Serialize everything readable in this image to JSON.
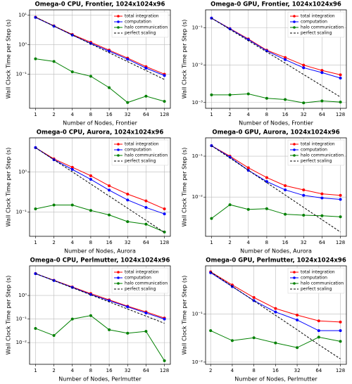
{
  "chart_data": [
    {
      "type": "line",
      "title": "Omega-0 CPU, Frontier, 1024x1024x96",
      "xlabel": "Number of Nodes, Frontier",
      "ylabel": "Wall Clock Time per Step (s)",
      "x": [
        1,
        2,
        4,
        8,
        16,
        32,
        64,
        128
      ],
      "xscale": "log2",
      "yscale": "log",
      "xlim": [
        0.8,
        160
      ],
      "xticks": [
        1,
        2,
        4,
        8,
        16,
        32,
        64,
        128
      ],
      "ylim": [
        0.007,
        15
      ],
      "yticks": [
        {
          "value": 0.1,
          "label": "10⁻¹"
        },
        {
          "value": 1,
          "label": "10⁰"
        },
        {
          "value": 10,
          "label": "10¹"
        }
      ],
      "grid": true,
      "legend": "upper right",
      "series": [
        {
          "name": "total integration",
          "color": "#ff0000",
          "values": [
            8.5,
            4.3,
            2.2,
            1.2,
            0.65,
            0.35,
            0.18,
            0.1
          ]
        },
        {
          "name": "computation",
          "color": "#0000ff",
          "values": [
            8.3,
            4.2,
            2.1,
            1.1,
            0.6,
            0.32,
            0.16,
            0.09
          ]
        },
        {
          "name": "halo communication",
          "color": "#008000",
          "values": [
            0.33,
            0.27,
            0.12,
            0.085,
            0.035,
            0.011,
            0.018,
            0.012
          ]
        },
        {
          "name": "perfect scaling",
          "color": "#000000",
          "dashed": true,
          "values": [
            8.5,
            4.25,
            2.125,
            1.0625,
            0.53,
            0.266,
            0.133,
            0.066
          ]
        }
      ]
    },
    {
      "type": "line",
      "title": "Omega-0 GPU, Frontier, 1024x1024x96",
      "xlabel": "Number of Nodes, Frontier",
      "ylabel": "Wall Clock Time per Step (s)",
      "x": [
        1,
        2,
        4,
        8,
        16,
        32,
        64,
        128
      ],
      "xscale": "log2",
      "yscale": "log",
      "xlim": [
        0.8,
        160
      ],
      "xticks": [
        1,
        2,
        4,
        8,
        16,
        32,
        64,
        128
      ],
      "ylim": [
        0.0007,
        0.3
      ],
      "yticks": [
        {
          "value": 0.001,
          "label": "10⁻³"
        },
        {
          "value": 0.01,
          "label": "10⁻²"
        },
        {
          "value": 0.1,
          "label": "10⁻¹"
        }
      ],
      "grid": true,
      "legend": "upper right",
      "series": [
        {
          "name": "total integration",
          "color": "#ff0000",
          "values": [
            0.18,
            0.095,
            0.05,
            0.025,
            0.016,
            0.01,
            0.0072,
            0.0055
          ]
        },
        {
          "name": "computation",
          "color": "#0000ff",
          "values": [
            0.18,
            0.093,
            0.048,
            0.024,
            0.014,
            0.0085,
            0.0063,
            0.0045
          ]
        },
        {
          "name": "halo communication",
          "color": "#008000",
          "values": [
            0.0016,
            0.0016,
            0.0017,
            0.0013,
            0.0012,
            0.00098,
            0.0011,
            0.00103
          ]
        },
        {
          "name": "perfect scaling",
          "color": "#000000",
          "dashed": true,
          "values": [
            0.18,
            0.09,
            0.045,
            0.0225,
            0.01125,
            0.0056,
            0.0028,
            0.0014
          ]
        }
      ]
    },
    {
      "type": "line",
      "title": "Omega-0 CPU, Aurora, 1024x1024x96",
      "xlabel": "Number of Nodes, Aurora",
      "ylabel": "Wall Clock Time per Step (s)",
      "x": [
        1,
        2,
        4,
        8,
        16,
        32,
        64,
        128
      ],
      "xscale": "log2",
      "yscale": "log",
      "xlim": [
        0.8,
        160
      ],
      "xticks": [
        1,
        2,
        4,
        8,
        16,
        32,
        64,
        128
      ],
      "ylim": [
        0.025,
        7
      ],
      "yticks": [
        {
          "value": 0.1,
          "label": "10⁻¹"
        },
        {
          "value": 1,
          "label": "10⁰"
        }
      ],
      "grid": true,
      "legend": "upper right",
      "series": [
        {
          "name": "total integration",
          "color": "#ff0000",
          "values": [
            4.0,
            2.1,
            1.3,
            0.8,
            0.45,
            0.28,
            0.19,
            0.12
          ]
        },
        {
          "name": "computation",
          "color": "#0000ff",
          "values": [
            4.0,
            2.0,
            1.15,
            0.65,
            0.35,
            0.2,
            0.13,
            0.09
          ]
        },
        {
          "name": "halo communication",
          "color": "#008000",
          "values": [
            0.12,
            0.15,
            0.15,
            0.11,
            0.085,
            0.058,
            0.05,
            0.032
          ]
        },
        {
          "name": "perfect scaling",
          "color": "#000000",
          "dashed": true,
          "values": [
            4.0,
            2.0,
            1.0,
            0.5,
            0.25,
            0.125,
            0.0625,
            0.031
          ]
        }
      ]
    },
    {
      "type": "line",
      "title": "Omega-0 GPU, Aurora, 1024x1024x96",
      "xlabel": "Number of Nodes, Aurora",
      "ylabel": "Wall Clock Time per Step (s)",
      "x": [
        1,
        2,
        4,
        8,
        16,
        32,
        64,
        128
      ],
      "xscale": "log2",
      "yscale": "log",
      "xlim": [
        0.8,
        160
      ],
      "xticks": [
        1,
        2,
        4,
        8,
        16,
        32,
        64,
        128
      ],
      "ylim": [
        0.0011,
        0.28
      ],
      "yticks": [
        {
          "value": 0.01,
          "label": "10⁻²"
        },
        {
          "value": 0.1,
          "label": "10⁻¹"
        }
      ],
      "grid": true,
      "legend": "upper right",
      "series": [
        {
          "name": "total integration",
          "color": "#ff0000",
          "values": [
            0.18,
            0.1,
            0.052,
            0.03,
            0.019,
            0.015,
            0.012,
            0.011
          ]
        },
        {
          "name": "computation",
          "color": "#0000ff",
          "values": [
            0.18,
            0.095,
            0.045,
            0.024,
            0.015,
            0.011,
            0.0095,
            0.0088
          ]
        },
        {
          "name": "halo communication",
          "color": "#008000",
          "values": [
            0.003,
            0.0065,
            0.005,
            0.0052,
            0.0038,
            0.0036,
            0.0035,
            0.0033
          ]
        },
        {
          "name": "perfect scaling",
          "color": "#000000",
          "dashed": true,
          "values": [
            0.18,
            0.09,
            0.045,
            0.0225,
            0.01125,
            0.0056,
            0.0028,
            0.0014
          ]
        }
      ]
    },
    {
      "type": "line",
      "title": "Omega-0 CPU, Perlmutter, 1024x1024x96",
      "xlabel": "Number of Nodes, Perlmutter",
      "ylabel": "Wall Clock Time per Step (s)",
      "x": [
        1,
        2,
        4,
        8,
        16,
        32,
        64,
        128
      ],
      "xscale": "log2",
      "yscale": "log",
      "xlim": [
        0.8,
        160
      ],
      "xticks": [
        1,
        2,
        4,
        8,
        16,
        32,
        64,
        128
      ],
      "ylim": [
        0.0012,
        18
      ],
      "yticks": [
        {
          "value": 0.01,
          "label": "10⁻²"
        },
        {
          "value": 0.1,
          "label": "10⁻¹"
        },
        {
          "value": 1,
          "label": "10⁰"
        }
      ],
      "grid": true,
      "legend": "upper right",
      "series": [
        {
          "name": "total integration",
          "color": "#ff0000",
          "values": [
            8.5,
            4.4,
            2.3,
            1.2,
            0.65,
            0.35,
            0.2,
            0.11
          ]
        },
        {
          "name": "computation",
          "color": "#0000ff",
          "values": [
            8.4,
            4.3,
            2.2,
            1.1,
            0.6,
            0.33,
            0.18,
            0.1
          ]
        },
        {
          "name": "halo communication",
          "color": "#008000",
          "values": [
            0.04,
            0.02,
            0.1,
            0.14,
            0.035,
            0.025,
            0.03,
            0.0017
          ]
        },
        {
          "name": "perfect scaling",
          "color": "#000000",
          "dashed": true,
          "values": [
            8.5,
            4.25,
            2.125,
            1.0625,
            0.53,
            0.266,
            0.133,
            0.066
          ]
        }
      ]
    },
    {
      "type": "line",
      "title": "Omega-0 GPU, Perlmutter, 1024x1024x96",
      "xlabel": "Number of Nodes, Perlmutter",
      "ylabel": "Wall Clock Time per Step (s)",
      "x": [
        2,
        4,
        8,
        16,
        32,
        64,
        128
      ],
      "xscale": "log2",
      "yscale": "log",
      "xlim": [
        1.7,
        155
      ],
      "xticks": [
        2,
        4,
        8,
        16,
        32,
        64,
        128
      ],
      "ylim": [
        0.009,
        1.0
      ],
      "yticks": [
        {
          "value": 0.01,
          "label": "10⁻²"
        },
        {
          "value": 0.1,
          "label": "10⁻¹"
        }
      ],
      "grid": true,
      "legend": "upper right",
      "series": [
        {
          "name": "total integration",
          "color": "#ff0000",
          "values": [
            0.75,
            0.4,
            0.22,
            0.13,
            0.095,
            0.072,
            0.068
          ]
        },
        {
          "name": "computation",
          "color": "#0000ff",
          "values": [
            0.72,
            0.37,
            0.19,
            0.11,
            0.075,
            0.045,
            0.045
          ]
        },
        {
          "name": "halo communication",
          "color": "#008000",
          "values": [
            0.045,
            0.028,
            0.032,
            0.025,
            0.02,
            0.033,
            0.027
          ]
        },
        {
          "name": "perfect scaling",
          "color": "#000000",
          "dashed": true,
          "values": [
            0.75,
            0.375,
            0.1875,
            0.094,
            0.047,
            0.023,
            0.0117
          ]
        }
      ]
    }
  ]
}
